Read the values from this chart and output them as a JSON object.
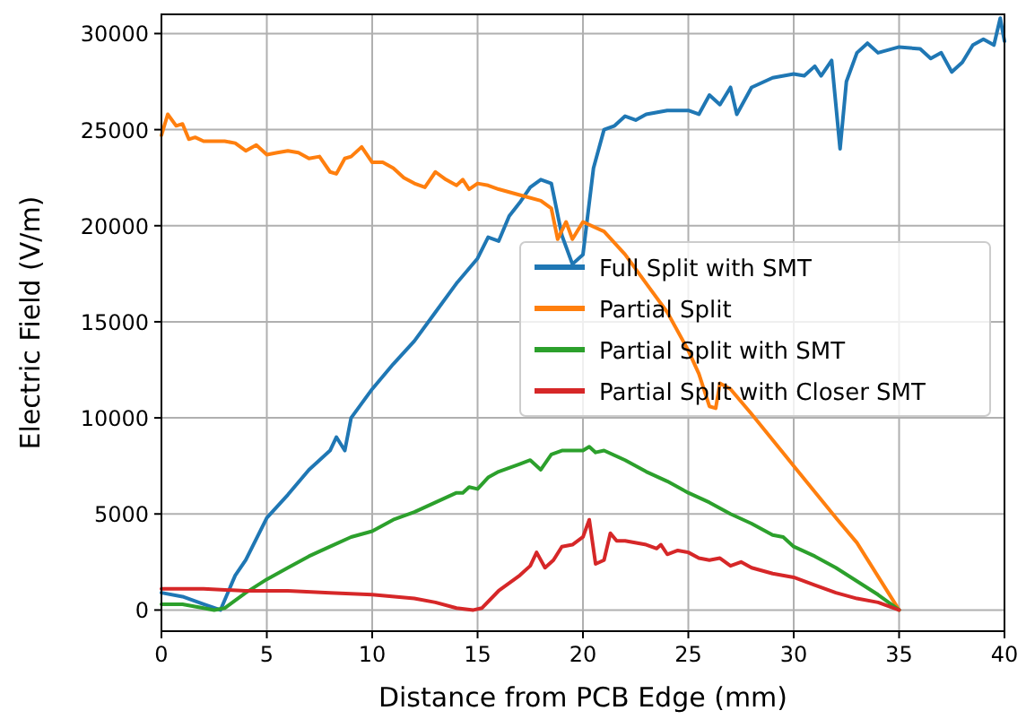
{
  "chart_data": {
    "type": "line",
    "xlabel": "Distance from PCB Edge (mm)",
    "ylabel": "Electric Field (V/m)",
    "xlim": [
      0,
      40
    ],
    "xticks": [
      0,
      5,
      10,
      15,
      20,
      25,
      30,
      35,
      40
    ],
    "ylim": [
      -1100,
      31000
    ],
    "yticks": [
      0,
      5000,
      10000,
      15000,
      20000,
      25000,
      30000
    ],
    "grid": true,
    "legend": "right",
    "line_style": "solid",
    "marker": "none",
    "series": [
      {
        "name": "Full Split with SMT",
        "color": "#1f77b4",
        "x": [
          0,
          1,
          2,
          2.8,
          3.5,
          4,
          5,
          6,
          7,
          8,
          8.3,
          8.7,
          9,
          10,
          11,
          12,
          13,
          14,
          15,
          15.5,
          16,
          16.5,
          17,
          17.5,
          18,
          18.5,
          19,
          19.5,
          20,
          20.5,
          21,
          21.5,
          22,
          22.5,
          23,
          24,
          25,
          25.5,
          26,
          26.5,
          27,
          27.3,
          28,
          29,
          30,
          30.5,
          31,
          31.3,
          31.8,
          32.2,
          32.5,
          33,
          33.5,
          34,
          35,
          36,
          36.5,
          37,
          37.5,
          38,
          38.5,
          39,
          39.5,
          39.8,
          40
        ],
        "values": [
          900,
          700,
          300,
          0,
          1800,
          2600,
          4800,
          6000,
          7300,
          8300,
          9000,
          8300,
          10000,
          11500,
          12800,
          14000,
          15500,
          17000,
          18300,
          19400,
          19200,
          20500,
          21200,
          22000,
          22400,
          22200,
          19500,
          18000,
          18500,
          23000,
          25000,
          25200,
          25700,
          25500,
          25800,
          26000,
          26000,
          25800,
          26800,
          26300,
          27200,
          25800,
          27200,
          27700,
          27900,
          27800,
          28300,
          27800,
          28600,
          24000,
          27500,
          29000,
          29500,
          29000,
          29300,
          29200,
          28700,
          29000,
          28000,
          28500,
          29400,
          29700,
          29400,
          30800,
          29600
        ]
      },
      {
        "name": "Partial Split",
        "color": "#ff7f0e",
        "x": [
          0,
          0.3,
          0.7,
          1,
          1.3,
          1.6,
          2,
          3,
          3.5,
          4,
          4.5,
          5,
          5.5,
          6,
          6.5,
          7,
          7.5,
          8,
          8.3,
          8.7,
          9,
          9.5,
          10,
          10.5,
          11,
          11.5,
          12,
          12.5,
          13,
          13.5,
          14,
          14.3,
          14.6,
          15,
          15.5,
          16,
          17,
          18,
          18.5,
          18.8,
          19.2,
          19.5,
          20,
          21,
          22,
          23,
          24,
          25,
          25.5,
          26,
          26.3,
          26.5,
          27,
          28,
          30,
          32,
          33,
          35
        ],
        "values": [
          24700,
          25800,
          25200,
          25300,
          24500,
          24600,
          24400,
          24400,
          24300,
          23900,
          24200,
          23700,
          23800,
          23900,
          23800,
          23500,
          23600,
          22800,
          22700,
          23500,
          23600,
          24100,
          23300,
          23300,
          23000,
          22500,
          22200,
          22000,
          22800,
          22400,
          22100,
          22400,
          21900,
          22200,
          22100,
          21900,
          21600,
          21300,
          20900,
          19300,
          20200,
          19300,
          20200,
          19700,
          18500,
          17000,
          15500,
          13500,
          12300,
          10600,
          10500,
          11800,
          11500,
          10200,
          7500,
          4800,
          3500,
          0
        ]
      },
      {
        "name": "Partial Split with SMT",
        "color": "#2ca02c",
        "x": [
          0,
          1,
          2,
          2.5,
          3,
          4,
          5,
          6,
          7,
          8,
          9,
          10,
          11,
          12,
          13,
          14,
          14.3,
          14.6,
          15,
          15.5,
          16,
          17,
          17.5,
          18,
          18.5,
          19,
          20,
          20.3,
          20.6,
          21,
          22,
          23,
          24,
          25,
          26,
          27,
          28,
          29,
          29.5,
          30,
          31,
          32,
          33,
          34,
          35
        ],
        "values": [
          300,
          300,
          100,
          0,
          100,
          900,
          1600,
          2200,
          2800,
          3300,
          3800,
          4100,
          4700,
          5100,
          5600,
          6100,
          6100,
          6400,
          6300,
          6900,
          7200,
          7600,
          7800,
          7300,
          8100,
          8300,
          8300,
          8500,
          8200,
          8300,
          7800,
          7200,
          6700,
          6100,
          5600,
          5000,
          4500,
          3900,
          3800,
          3300,
          2800,
          2200,
          1500,
          800,
          0
        ]
      },
      {
        "name": "Partial Split with Closer SMT",
        "color": "#d62728",
        "x": [
          0,
          2,
          4,
          6,
          8,
          10,
          12,
          13,
          14,
          14.8,
          15.2,
          16,
          17,
          17.5,
          17.8,
          18.2,
          18.6,
          19,
          19.5,
          20,
          20.3,
          20.6,
          21,
          21.3,
          21.6,
          22,
          23,
          23.5,
          23.7,
          24,
          24.5,
          25,
          25.5,
          26,
          26.5,
          27,
          27.5,
          28,
          29,
          30,
          31,
          32,
          33,
          34,
          35
        ],
        "values": [
          1100,
          1100,
          1000,
          1000,
          900,
          800,
          600,
          400,
          100,
          0,
          100,
          1000,
          1800,
          2300,
          3000,
          2200,
          2600,
          3300,
          3400,
          3800,
          4700,
          2400,
          2600,
          4000,
          3600,
          3600,
          3400,
          3200,
          3400,
          2900,
          3100,
          3000,
          2700,
          2600,
          2700,
          2300,
          2500,
          2200,
          1900,
          1700,
          1300,
          900,
          600,
          400,
          0
        ]
      }
    ]
  }
}
